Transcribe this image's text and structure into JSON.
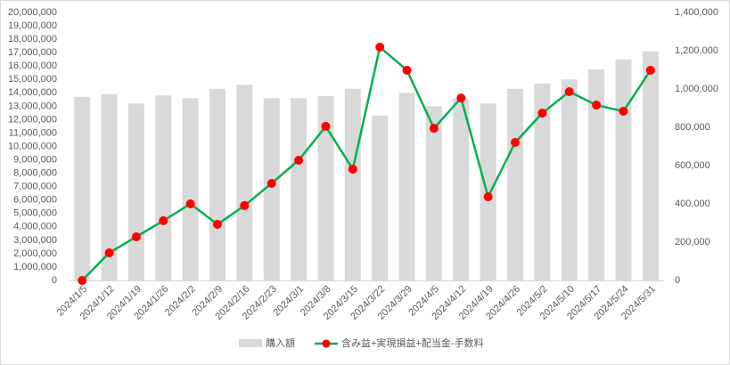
{
  "chart_data": {
    "type": "bar-line",
    "categories": [
      "2024/1/5",
      "2024/1/12",
      "2024/1/19",
      "2024/1/26",
      "2024/2/2",
      "2024/2/9",
      "2024/2/16",
      "2024/2/23",
      "2024/3/1",
      "2024/3/8",
      "2024/3/15",
      "2024/3/22",
      "2024/3/29",
      "2024/4/5",
      "2024/4/12",
      "2024/4/19",
      "2024/4/26",
      "2024/5/2",
      "2024/5/10",
      "2024/5/17",
      "2024/5/24",
      "2024/5/31"
    ],
    "series": [
      {
        "name": "購入額",
        "type": "bar",
        "color": "#d9d9d9",
        "axis": "y",
        "values": [
          13700000,
          13900000,
          13200000,
          13800000,
          13600000,
          14300000,
          14600000,
          13600000,
          13600000,
          13750000,
          14300000,
          12300000,
          14000000,
          13000000,
          13600000,
          13200000,
          14300000,
          14700000,
          15000000,
          15750000,
          16500000,
          17100000
        ]
      },
      {
        "name": "含み益+実現損益+配当金-手数料",
        "type": "line",
        "color": "#00b050",
        "marker_color": "#ff0000",
        "axis": "y2",
        "values": [
          0,
          144000,
          228000,
          312000,
          400000,
          293000,
          391000,
          507000,
          628000,
          805000,
          581000,
          1219000,
          1098000,
          795000,
          953000,
          437000,
          721000,
          874000,
          986000,
          916000,
          884000,
          1098000
        ]
      }
    ],
    "ylim": [
      0,
      20000000
    ],
    "yticks": [
      0,
      {
        "value": 1000000,
        "label": "1,000,000"
      },
      {
        "value": 2000000,
        "label": "2,000,000"
      },
      {
        "value": 3000000,
        "label": "3,000,000"
      },
      {
        "value": 4000000,
        "label": "4,000,000"
      },
      {
        "value": 5000000,
        "label": "5,000,000"
      },
      {
        "value": 6000000,
        "label": "6,000,000"
      },
      {
        "value": 7000000,
        "label": "7,000,000"
      },
      {
        "value": 8000000,
        "label": "8,000,000"
      },
      {
        "value": 9000000,
        "label": "9,000,000"
      },
      {
        "value": 10000000,
        "label": "10,000,000"
      },
      {
        "value": 11000000,
        "label": "11,000,000"
      },
      {
        "value": 12000000,
        "label": "12,000,000"
      },
      {
        "value": 13000000,
        "label": "13,000,000"
      },
      {
        "value": 14000000,
        "label": "14,000,000"
      },
      {
        "value": 15000000,
        "label": "15,000,000"
      },
      {
        "value": 16000000,
        "label": "16,000,000"
      },
      {
        "value": 17000000,
        "label": "17,000,000"
      },
      {
        "value": 18000000,
        "label": "18,000,000"
      },
      {
        "value": 19000000,
        "label": "19,000,000"
      },
      {
        "value": 20000000,
        "label": "20,000,000"
      }
    ],
    "y2lim": [
      0,
      1400000
    ],
    "y2ticks": [
      0,
      {
        "value": 200000,
        "label": "200,000"
      },
      {
        "value": 400000,
        "label": "400,000"
      },
      {
        "value": 600000,
        "label": "600,000"
      },
      {
        "value": 800000,
        "label": "800,000"
      },
      {
        "value": 1000000,
        "label": "1,000,000"
      },
      {
        "value": 1200000,
        "label": "1,200,000"
      },
      {
        "value": 1400000,
        "label": "1,400,000"
      }
    ],
    "grid": false,
    "legend": "bottom"
  }
}
